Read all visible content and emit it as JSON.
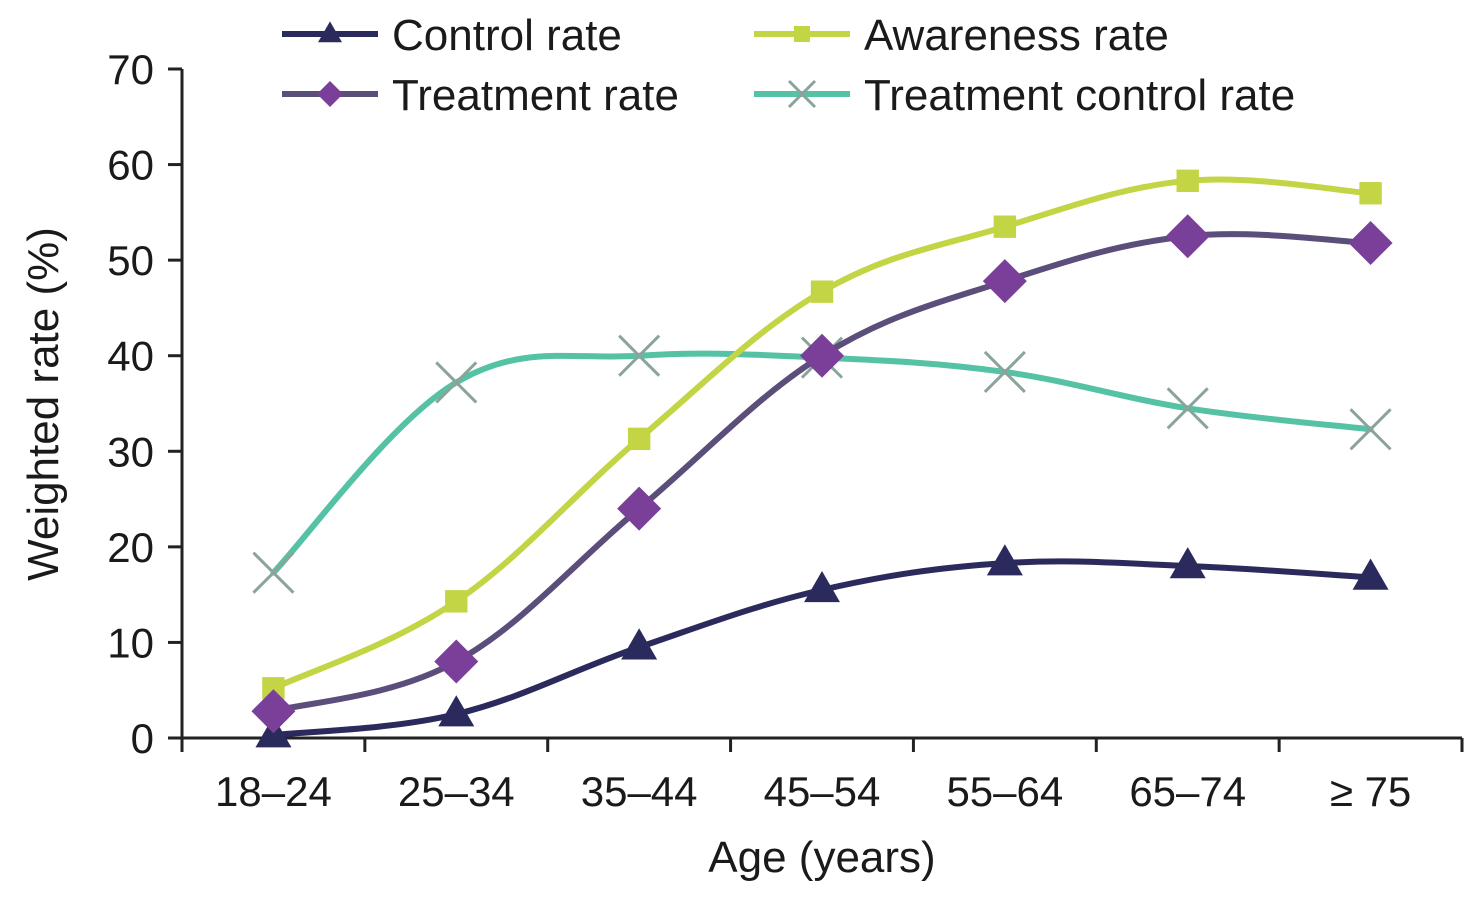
{
  "chart_data": {
    "type": "line",
    "categories": [
      "18–24",
      "25–34",
      "35–44",
      "45–54",
      "55–64",
      "65–74",
      "≥ 75"
    ],
    "series": [
      {
        "name": "Control rate",
        "color": "#2b2a5c",
        "marker": "triangle",
        "values": [
          0.3,
          2.5,
          9.5,
          15.5,
          18.3,
          18.0,
          16.8
        ]
      },
      {
        "name": "Awareness rate",
        "color": "#c3d544",
        "marker": "square",
        "values": [
          5.2,
          14.3,
          31.3,
          46.7,
          53.5,
          58.3,
          57.0
        ]
      },
      {
        "name": "Treatment rate",
        "color": "#7a3f98",
        "lineColor": "#5b4e7a",
        "marker": "diamond",
        "values": [
          2.8,
          8.0,
          24.0,
          40.0,
          47.8,
          52.5,
          51.8
        ]
      },
      {
        "name": "Treatment control rate",
        "color": "#55c2a6",
        "markerColor": "#8aa39b",
        "marker": "x",
        "values": [
          17.3,
          37.2,
          40.0,
          39.8,
          38.3,
          34.5,
          32.3
        ]
      }
    ],
    "xlabel": "Age (years)",
    "ylabel": "Weighted rate (%)",
    "ylim": [
      0,
      70
    ],
    "yticks": [
      0,
      10,
      20,
      30,
      40,
      50,
      60,
      70
    ],
    "grid": false,
    "legend_position": "top"
  }
}
